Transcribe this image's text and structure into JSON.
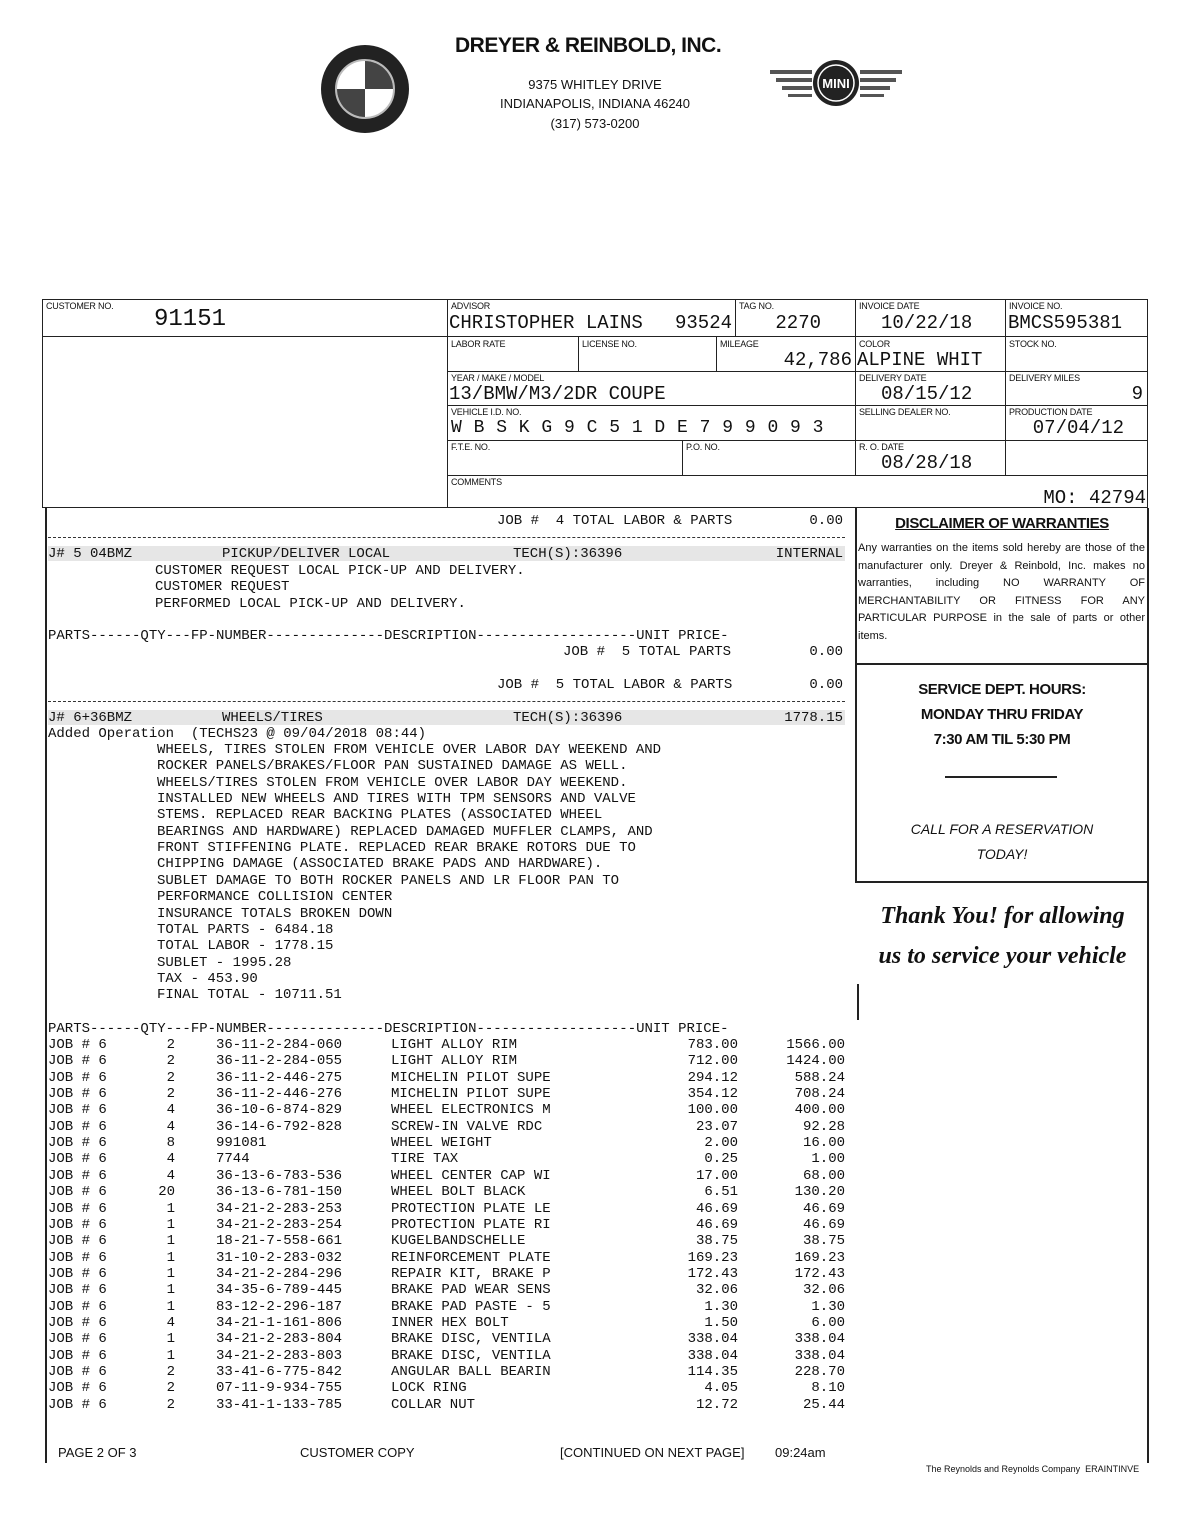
{
  "header": {
    "company": "DREYER & REINBOLD, INC.",
    "address1": "9375 WHITLEY DRIVE",
    "address2": "INDIANAPOLIS, INDIANA 46240",
    "phone": "(317) 573-0200",
    "logo_left": "BMW",
    "logo_right": "MINI"
  },
  "form": {
    "customer_no_label": "CUSTOMER NO.",
    "customer_no": "91151",
    "advisor_label": "ADVISOR",
    "advisor": "CHRISTOPHER LAINS",
    "advisor_no": "93524",
    "tag_label": "TAG NO.",
    "tag": "2270",
    "invoice_date_label": "INVOICE DATE",
    "invoice_date": "10/22/18",
    "invoice_no_label": "INVOICE NO.",
    "invoice_no": "BMCS595381",
    "labor_rate_label": "LABOR RATE",
    "license_label": "LICENSE NO.",
    "mileage_label": "MILEAGE",
    "mileage": "42,786",
    "color_label": "COLOR",
    "color": "ALPINE WHIT",
    "stock_label": "STOCK NO.",
    "ymm_label": "YEAR / MAKE / MODEL",
    "ymm": "13/BMW/M3/2DR COUPE",
    "delivery_date_label": "DELIVERY DATE",
    "delivery_date": "08/15/12",
    "delivery_miles_label": "DELIVERY MILES",
    "delivery_miles": "9",
    "vin_label": "VEHICLE I.D. NO.",
    "vin": "W B S K G 9 C 5 1 D E 7 9 9 0 9 3",
    "selling_dealer_label": "SELLING DEALER NO.",
    "production_date_label": "PRODUCTION DATE",
    "production_date": "07/04/12",
    "fte_label": "F.T.E. NO.",
    "po_label": "P.O. NO.",
    "ro_date_label": "R. O. DATE",
    "ro_date": "08/28/18",
    "comments_label": "COMMENTS",
    "comments": "MO: 42794"
  },
  "body": {
    "job4_total_label": "JOB #  4 TOTAL LABOR & PARTS",
    "job4_total": "0.00",
    "job5": {
      "code": "J# 5 04BMZ",
      "title": "PICKUP/DELIVER LOCAL",
      "tech": "TECH(S):36396",
      "amount": "INTERNAL",
      "lines": [
        "CUSTOMER REQUEST LOCAL PICK-UP AND DELIVERY.",
        "CUSTOMER REQUEST",
        "PERFORMED LOCAL PICK-UP AND DELIVERY."
      ]
    },
    "parts_header": "PARTS------QTY---FP-NUMBER--------------DESCRIPTION-------------------UNIT PRICE-",
    "job5_parts_label": "JOB #  5 TOTAL PARTS",
    "job5_parts": "0.00",
    "job5_total_label": "JOB #  5 TOTAL LABOR & PARTS",
    "job5_total": "0.00",
    "job6": {
      "code": "J# 6+36BMZ",
      "title": "WHEELS/TIRES",
      "tech": "TECH(S):36396",
      "amount": "1778.15",
      "added": "Added Operation  (TECHS23 @ 09/04/2018 08:44)",
      "lines": [
        "WHEELS, TIRES STOLEN FROM VEHICLE OVER LABOR DAY WEEKEND AND",
        "ROCKER PANELS/BRAKES/FLOOR PAN SUSTAINED DAMAGE AS WELL.",
        "WHEELS/TIRES STOLEN FROM VEHICLE OVER LABOR DAY WEEKEND.",
        "INSTALLED NEW WHEELS AND TIRES WITH TPM SENSORS AND VALVE",
        "STEMS. REPLACED REAR BACKING PLATES (ASSOCIATED WHEEL",
        "BEARINGS AND HARDWARE) REPLACED DAMAGED MUFFLER CLAMPS, AND",
        "FRONT STIFFENING PLATE. REPLACED REAR BRAKE ROTORS DUE TO",
        "CHIPPING DAMAGE (ASSOCIATED BRAKE PADS AND HARDWARE).",
        "SUBLET DAMAGE TO BOTH ROCKER PANELS AND LR FLOOR PAN TO",
        "PERFORMANCE COLLISION CENTER",
        "INSURANCE TOTALS BROKEN DOWN",
        "TOTAL PARTS - 6484.18",
        "TOTAL LABOR - 1778.15",
        "SUBLET - 1995.28",
        "TAX - 453.90",
        "FINAL TOTAL - 10711.51"
      ]
    },
    "parts": [
      [
        "JOB # 6",
        "2",
        "36-11-2-284-060",
        "LIGHT ALLOY RIM",
        "783.00",
        "1566.00"
      ],
      [
        "JOB # 6",
        "2",
        "36-11-2-284-055",
        "LIGHT ALLOY RIM",
        "712.00",
        "1424.00"
      ],
      [
        "JOB # 6",
        "2",
        "36-11-2-446-275",
        "MICHELIN PILOT SUPE",
        "294.12",
        "588.24"
      ],
      [
        "JOB # 6",
        "2",
        "36-11-2-446-276",
        "MICHELIN PILOT SUPE",
        "354.12",
        "708.24"
      ],
      [
        "JOB # 6",
        "4",
        "36-10-6-874-829",
        "WHEEL ELECTRONICS M",
        "100.00",
        "400.00"
      ],
      [
        "JOB # 6",
        "4",
        "36-14-6-792-828",
        "SCREW-IN VALVE RDC",
        "23.07",
        "92.28"
      ],
      [
        "JOB # 6",
        "8",
        "991081",
        "WHEEL WEIGHT",
        "2.00",
        "16.00"
      ],
      [
        "JOB # 6",
        "4",
        "7744",
        "TIRE TAX",
        "0.25",
        "1.00"
      ],
      [
        "JOB # 6",
        "4",
        "36-13-6-783-536",
        "WHEEL CENTER CAP WI",
        "17.00",
        "68.00"
      ],
      [
        "JOB # 6",
        "20",
        "36-13-6-781-150",
        "WHEEL BOLT BLACK",
        "6.51",
        "130.20"
      ],
      [
        "JOB # 6",
        "1",
        "34-21-2-283-253",
        "PROTECTION PLATE LE",
        "46.69",
        "46.69"
      ],
      [
        "JOB # 6",
        "1",
        "34-21-2-283-254",
        "PROTECTION PLATE RI",
        "46.69",
        "46.69"
      ],
      [
        "JOB # 6",
        "1",
        "18-21-7-558-661",
        "KUGELBANDSCHELLE",
        "38.75",
        "38.75"
      ],
      [
        "JOB # 6",
        "1",
        "31-10-2-283-032",
        "REINFORCEMENT PLATE",
        "169.23",
        "169.23"
      ],
      [
        "JOB # 6",
        "1",
        "34-21-2-284-296",
        "REPAIR KIT, BRAKE P",
        "172.43",
        "172.43"
      ],
      [
        "JOB # 6",
        "1",
        "34-35-6-789-445",
        "BRAKE PAD WEAR SENS",
        "32.06",
        "32.06"
      ],
      [
        "JOB # 6",
        "1",
        "83-12-2-296-187",
        "BRAKE PAD PASTE - 5",
        "1.30",
        "1.30"
      ],
      [
        "JOB # 6",
        "4",
        "34-21-1-161-806",
        "INNER HEX BOLT",
        "1.50",
        "6.00"
      ],
      [
        "JOB # 6",
        "1",
        "34-21-2-283-804",
        "BRAKE DISC, VENTILA",
        "338.04",
        "338.04"
      ],
      [
        "JOB # 6",
        "1",
        "34-21-2-283-803",
        "BRAKE DISC, VENTILA",
        "338.04",
        "338.04"
      ],
      [
        "JOB # 6",
        "2",
        "33-41-6-775-842",
        "ANGULAR BALL BEARIN",
        "114.35",
        "228.70"
      ],
      [
        "JOB # 6",
        "2",
        "07-11-9-934-755",
        "LOCK RING",
        "4.05",
        "8.10"
      ],
      [
        "JOB # 6",
        "2",
        "33-41-1-133-785",
        "COLLAR NUT",
        "12.72",
        "25.44"
      ]
    ]
  },
  "side": {
    "disclaimer_title": "DISCLAIMER OF WARRANTIES",
    "disclaimer_text": "Any warranties on the items sold hereby are those of the manufacturer only. Dreyer & Reinbold, Inc. makes no warranties, including NO WARRANTY OF MERCHANTABILITY OR FITNESS FOR ANY PARTICULAR PURPOSE in the sale of parts or other items.",
    "hours_title": "SERVICE DEPT. HOURS:",
    "hours_days": "MONDAY THRU FRIDAY",
    "hours_time": "7:30 AM TIL 5:30 PM",
    "reservation1": "CALL FOR A RESERVATION",
    "reservation2": "TODAY!",
    "thanks1": "Thank You! for allowing",
    "thanks2": "us to service your vehicle"
  },
  "footer": {
    "page": "PAGE 2 OF 3",
    "copy": "CUSTOMER COPY",
    "continued": "[CONTINUED ON NEXT PAGE]",
    "time": "09:24am",
    "vendor": "The Reynolds and Reynolds Company  ERAINTINVE"
  }
}
